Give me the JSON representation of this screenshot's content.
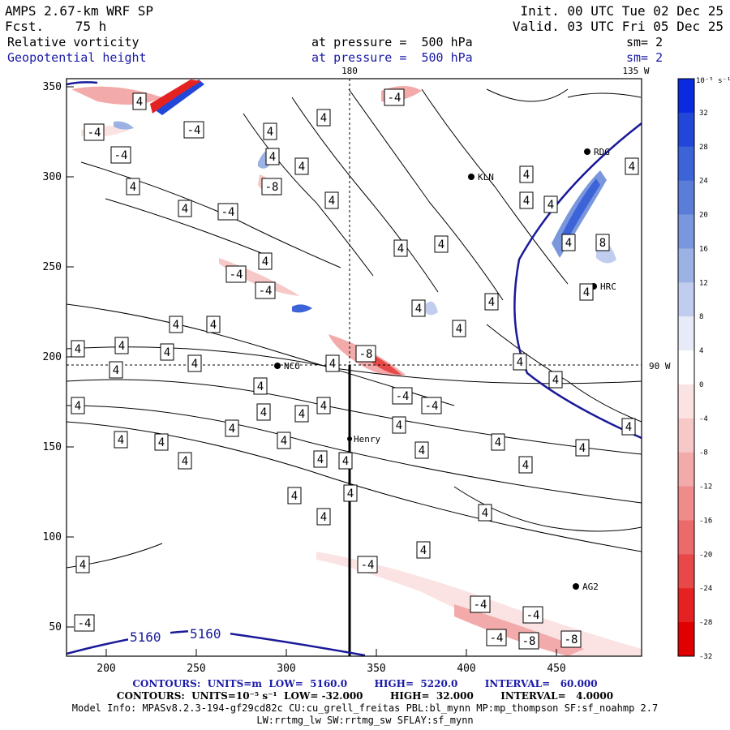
{
  "header": {
    "model": "AMPS 2.67-km WRF SP",
    "fcst": "Fcst.    75 h",
    "init": "Init. 00 UTC Tue 02 Dec 25",
    "valid": "Valid. 03 UTC Fri 05 Dec 25",
    "field1": "Relative vorticity",
    "field1_level": "at pressure =  500 hPa",
    "field1_sm": "sm= 2",
    "field2": "Geopotential height",
    "field2_level": "at pressure =  500 hPa",
    "field2_sm": "sm= 2"
  },
  "map": {
    "lon_top_180": "180",
    "lon_top_135w": "135 W",
    "lat_right_90s": "90 W",
    "x_ticks": [
      "200",
      "250",
      "300",
      "350",
      "400",
      "450"
    ],
    "y_ticks": [
      "350",
      "300",
      "250",
      "200",
      "150",
      "100",
      "50"
    ],
    "stations": [
      "NCO",
      "KLN",
      "RDG",
      "HRC",
      "AG2",
      "Henry"
    ],
    "height_labels": [
      "5160",
      "5160"
    ],
    "contour_labels_pos": "4",
    "contour_labels_neg": "-4",
    "contour_labels_8": "-8",
    "contour_labels_p8": "8"
  },
  "colorbar": {
    "unit": "10⁻⁵ s⁻¹",
    "labels": [
      "32",
      "28",
      "24",
      "20",
      "16",
      "12",
      "8",
      "4",
      "0",
      "-4",
      "-8",
      "-12",
      "-16",
      "-20",
      "-24",
      "-28",
      "-32"
    ],
    "colors": [
      "#0a2ae0",
      "#2247d8",
      "#3d63d8",
      "#5a7ed8",
      "#7a97dd",
      "#9cb2e4",
      "#c0cdee",
      "#e6ebf7",
      "#ffffff",
      "#fbe3e3",
      "#f7c8c8",
      "#f3aaaa",
      "#ef8b8b",
      "#ec6a6a",
      "#e84848",
      "#e42222",
      "#e00000"
    ]
  },
  "footer": {
    "line1": "CONTOURS:  UNITS=m  LOW=  5160.0        HIGH=  5220.0        INTERVAL=   60.000",
    "line2": "CONTOURS:  UNITS=10⁻⁵ s⁻¹  LOW= -32.000        HIGH=  32.000        INTERVAL=   4.0000",
    "line3": "Model Info: MPASv8.2.3-194-gf29cd82c CU:cu_grell_freitas PBL:bl_mynn MP:mp_thompson SF:sf_noahmp 2.7",
    "line4": "LW:rrtmg_lw SW:rrtmg_sw SFLAY:sf_mynn"
  }
}
